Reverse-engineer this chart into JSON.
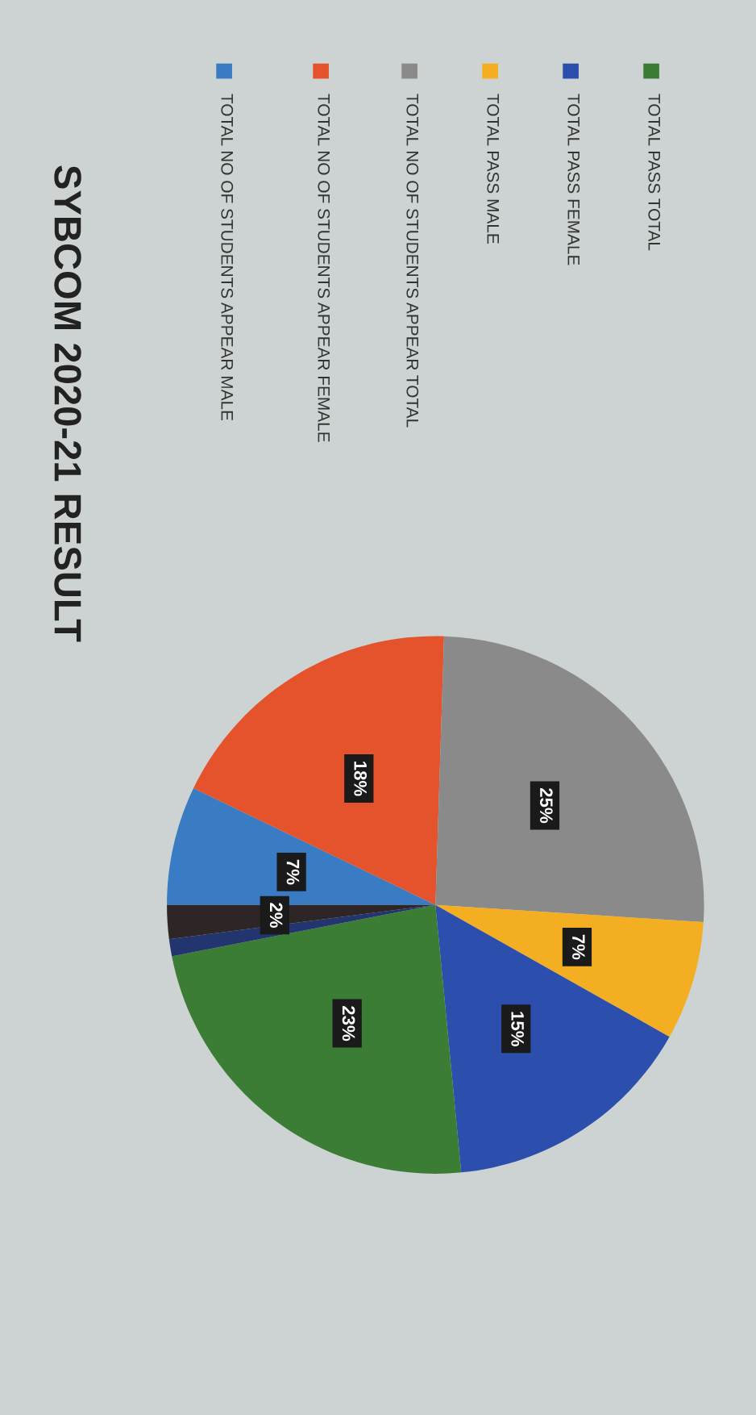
{
  "chart_data": {
    "type": "pie",
    "title": "SYBCOM 2020-21 RESULT",
    "categories": [
      "TOTAL NO OF STUDENTS APPEAR MALE",
      "TOTAL NO OF STUDENTS APPEAR FEMALE",
      "TOTAL NO OF STUDENTS APPEAR TOTAL",
      "TOTAL PASS MALE",
      "TOTAL PASS FEMALE",
      "TOTAL PASS TOTAL",
      null,
      null
    ],
    "values": [
      7,
      18,
      25,
      7,
      15,
      23,
      1,
      2
    ],
    "value_labels": [
      "7%",
      "18%",
      "25%",
      "7%",
      "15%",
      "23%",
      null,
      "2%"
    ],
    "colors": [
      "#3a7cc4",
      "#e4532b",
      "#8a8a8a",
      "#f4ae22",
      "#2c4fae",
      "#3c7d35",
      "#23356e",
      "#2e2626"
    ],
    "legend": "right"
  }
}
